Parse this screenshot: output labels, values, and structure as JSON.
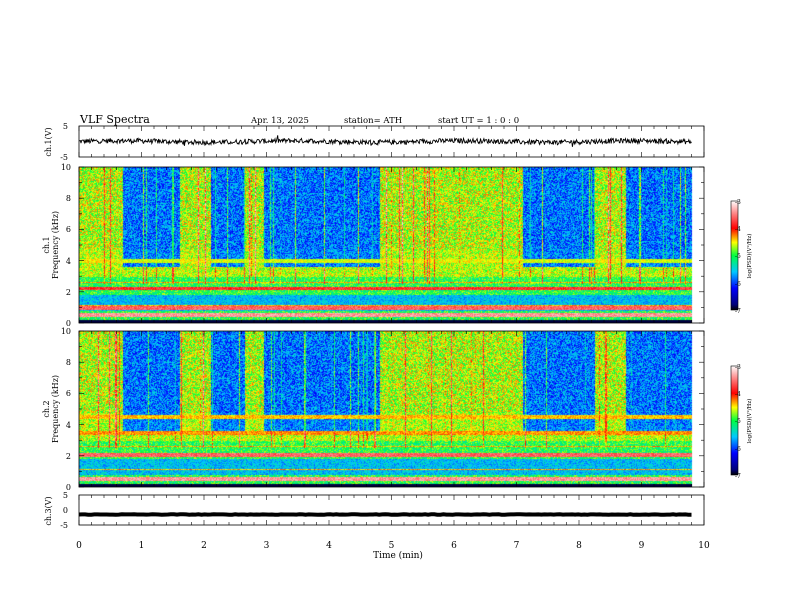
{
  "header": {
    "title": "VLF  Spectra",
    "date": "Apr. 13, 2025",
    "station": "station= ATH",
    "start": "start  UT  =    1  : 0   : 0"
  },
  "chart_data": [
    {
      "type": "line",
      "ylabel": "ch.1(V)",
      "ylim": [
        -5,
        5
      ],
      "yticks": [
        "5",
        "-5"
      ],
      "xlim": [
        0,
        10
      ],
      "series": [
        {
          "x_range": [
            0,
            9.8
          ],
          "baseline": 0,
          "noise_amplitude": 1.0,
          "color": "#000000"
        }
      ]
    },
    {
      "type": "heatmap",
      "ylabel_lines": [
        "ch.1",
        "Frequency (kHz)"
      ],
      "xlim": [
        0,
        10
      ],
      "ylim": [
        0,
        10
      ],
      "yticks": [
        "0",
        "2",
        "4",
        "6",
        "8",
        "10"
      ],
      "x_extent": [
        0,
        9.8
      ],
      "colorbar": {
        "label": "log(PSD)(V²/Hz)",
        "range": [
          -7,
          -3
        ],
        "ticks": [
          "-3",
          "-4",
          "-5",
          "-6",
          "-7"
        ]
      },
      "quiet_intervals_min": [
        [
          0.7,
          1.6
        ],
        [
          2.1,
          2.65
        ],
        [
          2.95,
          4.8
        ],
        [
          7.1,
          8.25
        ],
        [
          8.75,
          9.8
        ]
      ],
      "bright_bands_khz": [
        {
          "f": 0.55,
          "level": -3.6
        },
        {
          "f": 1.0,
          "level": -3.8
        },
        {
          "f": 2.25,
          "level": -4.0
        },
        {
          "f": 4.0,
          "level": -4.8
        }
      ]
    },
    {
      "type": "heatmap",
      "ylabel_lines": [
        "ch.2",
        "Frequency (kHz)"
      ],
      "xlim": [
        0,
        10
      ],
      "ylim": [
        0,
        10
      ],
      "yticks": [
        "0",
        "2",
        "4",
        "6",
        "8",
        "10"
      ],
      "x_extent": [
        0,
        9.8
      ],
      "colorbar": {
        "label": "log(PSD)(V²/Hz)",
        "range": [
          -7,
          -3
        ],
        "ticks": [
          "-3",
          "-4",
          "-5",
          "-6",
          "-7"
        ]
      },
      "quiet_intervals_min": [
        [
          0.7,
          1.6
        ],
        [
          2.1,
          2.65
        ],
        [
          2.95,
          4.8
        ],
        [
          7.1,
          8.25
        ],
        [
          8.75,
          9.8
        ]
      ],
      "bright_bands_khz": [
        {
          "f": 0.55,
          "level": -3.6
        },
        {
          "f": 2.1,
          "level": -3.8
        },
        {
          "f": 3.5,
          "level": -4.5
        },
        {
          "f": 4.5,
          "level": -4.6
        }
      ]
    },
    {
      "type": "line",
      "ylabel": "ch.3(V)",
      "ylim": [
        -5,
        5
      ],
      "yticks": [
        "5",
        "0",
        "-5"
      ],
      "xlim": [
        0,
        10
      ],
      "xticks": [
        "0",
        "1",
        "2",
        "3",
        "4",
        "5",
        "6",
        "7",
        "8",
        "9",
        "10"
      ],
      "xlabel": "Time  (min)",
      "series": [
        {
          "x_range": [
            0,
            9.8
          ],
          "baseline": -1.5,
          "noise_amplitude": 0.15,
          "color": "#000000"
        }
      ]
    }
  ]
}
